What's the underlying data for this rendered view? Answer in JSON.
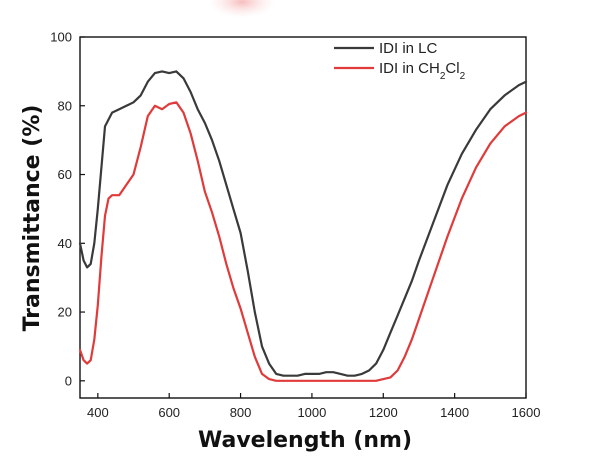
{
  "chart_data": {
    "type": "line",
    "title": "",
    "xlabel": "Wavelength (nm)",
    "ylabel": "Transmittance (%)",
    "xlim": [
      350,
      1600
    ],
    "ylim": [
      -5,
      100
    ],
    "xticks": [
      400,
      600,
      800,
      1000,
      1200,
      1400,
      1600
    ],
    "yticks": [
      0,
      20,
      40,
      60,
      80,
      100
    ],
    "legend_position": "top-right",
    "grid": false,
    "series": [
      {
        "name": "IDI in LC",
        "name_parts": [
          {
            "text": "IDI in LC",
            "sub": false
          }
        ],
        "color": "#3a3a3a",
        "x": [
          350,
          360,
          370,
          380,
          390,
          400,
          420,
          440,
          460,
          480,
          500,
          520,
          540,
          560,
          580,
          600,
          620,
          640,
          660,
          680,
          700,
          720,
          740,
          760,
          780,
          800,
          820,
          840,
          860,
          880,
          900,
          920,
          940,
          960,
          980,
          1000,
          1020,
          1040,
          1060,
          1080,
          1100,
          1120,
          1140,
          1160,
          1180,
          1200,
          1220,
          1240,
          1260,
          1280,
          1300,
          1340,
          1380,
          1420,
          1460,
          1500,
          1540,
          1580,
          1600
        ],
        "y": [
          40,
          35,
          33,
          34,
          40,
          50,
          74,
          78,
          79,
          80,
          81,
          83,
          87,
          89.5,
          90,
          89.5,
          90,
          88,
          84,
          79,
          75,
          70,
          64,
          57,
          50,
          43,
          32,
          20,
          10,
          5,
          2,
          1.5,
          1.5,
          1.5,
          2,
          2,
          2,
          2.5,
          2.5,
          2,
          1.5,
          1.5,
          2,
          3,
          5,
          9,
          14,
          19,
          24,
          29,
          35,
          46,
          57,
          66,
          73,
          79,
          83,
          86,
          87
        ]
      },
      {
        "name": "IDI in CH2Cl2",
        "name_parts": [
          {
            "text": "IDI in CH",
            "sub": false
          },
          {
            "text": "2",
            "sub": true
          },
          {
            "text": "Cl",
            "sub": false
          },
          {
            "text": "2",
            "sub": true
          }
        ],
        "color": "#e03a3a",
        "x": [
          350,
          360,
          370,
          380,
          390,
          400,
          410,
          420,
          430,
          440,
          460,
          480,
          500,
          520,
          540,
          560,
          580,
          600,
          620,
          640,
          660,
          680,
          700,
          720,
          740,
          760,
          780,
          800,
          820,
          840,
          860,
          880,
          900,
          940,
          1000,
          1060,
          1120,
          1180,
          1220,
          1240,
          1260,
          1280,
          1300,
          1340,
          1380,
          1420,
          1460,
          1500,
          1540,
          1580,
          1600
        ],
        "y": [
          9,
          6,
          5,
          6,
          12,
          22,
          36,
          48,
          53,
          54,
          54,
          57,
          60,
          68,
          77,
          80,
          79,
          80.5,
          81,
          78,
          72,
          64,
          55,
          49,
          42,
          34,
          27,
          21,
          14,
          7,
          2,
          0.5,
          0,
          0,
          0,
          0,
          0,
          0,
          1,
          3,
          7,
          12,
          18,
          30,
          42,
          53,
          62,
          69,
          74,
          77,
          78
        ]
      }
    ]
  }
}
